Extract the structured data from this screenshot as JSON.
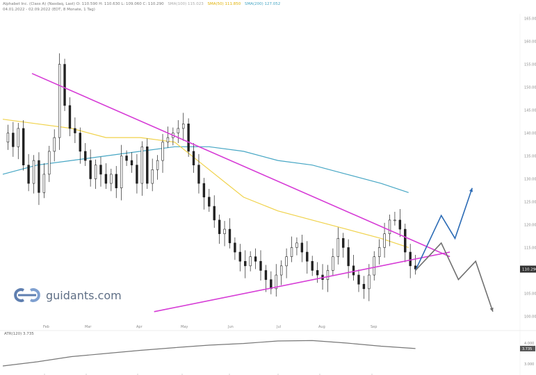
{
  "header": {
    "line1": "Alphabet Inc. (Class A) (Nasdaq, Last)  O: 110.590  H: 110.630  L: 109.060  C: 110.290",
    "sma100_label": "SMA(100) 115.023",
    "sma50_label": "SMA(50) 111.850",
    "sma200_label": "SMA(200) 127.052",
    "line2": "04.01.2022 - 02.09.2022  (EDT, 8 Monate, 1 Tag)"
  },
  "logo": {
    "text": "guidants.com"
  },
  "colors": {
    "trendline": "#d63bd6",
    "sma100": "#f0d24a",
    "sma200": "#46a6c4",
    "bull_scenario": "#2b6bb5",
    "bear_scenario": "#707070",
    "candle": "#222222",
    "atr": "#777777"
  },
  "chart_data": {
    "type": "candlestick",
    "title": "Alphabet Inc. (Class A)",
    "x_ticks": [
      "Feb",
      "Mar",
      "Apr",
      "May",
      "Jun",
      "Jul",
      "Aug",
      "Sep"
    ],
    "y_ticks": [
      "100.000",
      "105.000",
      "110.000",
      "115.000",
      "120.000",
      "125.000",
      "130.000",
      "135.000",
      "140.000",
      "145.000",
      "150.000",
      "155.000",
      "160.000",
      "165.000"
    ],
    "y_range": [
      99,
      166
    ],
    "last_price_label": "110.290",
    "close_path_x": [
      0,
      3,
      6,
      9,
      12,
      15,
      18,
      21,
      24,
      27,
      30,
      33,
      36,
      39,
      42,
      45,
      48,
      51,
      54,
      57,
      60,
      63,
      66,
      69,
      72,
      75,
      78,
      81,
      84,
      87,
      90,
      93,
      96,
      99,
      102,
      105,
      108,
      111,
      114,
      117,
      120,
      123,
      126,
      129,
      132,
      135,
      138,
      141,
      144,
      147,
      150,
      153,
      156,
      159,
      162,
      165,
      168,
      171,
      174,
      177,
      180,
      183,
      186,
      189,
      192,
      195,
      198,
      201,
      204,
      207,
      210,
      213,
      216,
      219,
      222,
      225,
      228,
      231,
      234,
      237,
      240
    ],
    "close_path_y": [
      138,
      140,
      137,
      141,
      133,
      129,
      134,
      127,
      131,
      136,
      139,
      155,
      146,
      141,
      140,
      136,
      134,
      130,
      133,
      131,
      129,
      131,
      128,
      135,
      134,
      133,
      129,
      137,
      129,
      132,
      134,
      138,
      139,
      140,
      141,
      142,
      136,
      133,
      129,
      126,
      124,
      121,
      118,
      119,
      116,
      114,
      112,
      111,
      113,
      112,
      110,
      108,
      106,
      109,
      111,
      113,
      115,
      116,
      114,
      112,
      110,
      109,
      108,
      110,
      113,
      117,
      115,
      111,
      109,
      107,
      106,
      109,
      113,
      115,
      118,
      121,
      121,
      119,
      114,
      111,
      110.3
    ],
    "sma100": {
      "name": "SMA(100)",
      "value": "115.023",
      "x": [
        0,
        20,
        40,
        60,
        80,
        100,
        120,
        140,
        160,
        180,
        200,
        220,
        236
      ],
      "y": [
        143,
        142,
        141,
        139,
        139,
        138,
        132,
        126,
        123,
        121,
        119,
        117,
        115
      ]
    },
    "sma200": {
      "name": "SMA(200)",
      "value": "127.052",
      "x": [
        0,
        20,
        40,
        60,
        80,
        100,
        120,
        140,
        160,
        180,
        200,
        220,
        236
      ],
      "y": [
        131,
        133,
        134,
        135,
        136,
        137,
        137,
        136,
        134,
        133,
        131,
        129,
        127
      ]
    },
    "trendline_upper": {
      "x": [
        17,
        260
      ],
      "y": [
        153,
        113
      ]
    },
    "trendline_lower": {
      "x": [
        88,
        260
      ],
      "y": [
        101,
        114
      ]
    },
    "bull_scenario": {
      "x": [
        240,
        255,
        263,
        273
      ],
      "y": [
        110,
        122,
        117,
        128
      ]
    },
    "bear_scenario": {
      "x": [
        240,
        255,
        265,
        275,
        285
      ],
      "y": [
        110,
        116,
        108,
        112,
        101
      ]
    },
    "atr": {
      "label": "ATR(120)",
      "value": "3.735",
      "ticks": [
        "4.000",
        "3.000"
      ],
      "range": [
        2.8,
        4.4
      ],
      "x": [
        0,
        20,
        40,
        60,
        80,
        100,
        120,
        140,
        160,
        180,
        200,
        220,
        240
      ],
      "y": [
        2.9,
        3.1,
        3.35,
        3.5,
        3.65,
        3.78,
        3.9,
        3.98,
        4.1,
        4.12,
        4.0,
        3.85,
        3.735
      ]
    }
  }
}
